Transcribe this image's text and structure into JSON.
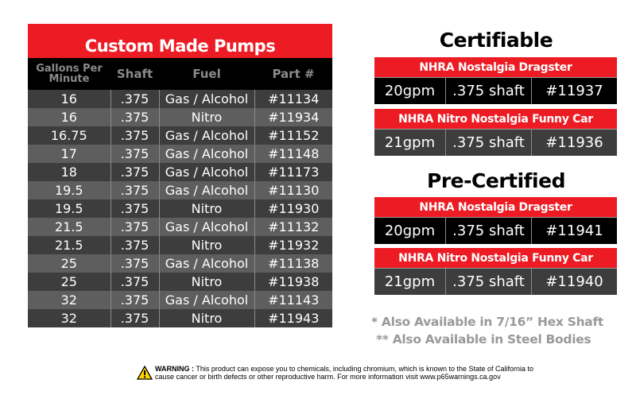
{
  "custom": {
    "title": "Custom Made Pumps",
    "headers": [
      "Gallons Per Minute",
      "Shaft",
      "Fuel",
      "Part #"
    ],
    "rows": [
      [
        "16",
        ".375",
        "Gas / Alcohol",
        "#11134"
      ],
      [
        "16",
        ".375",
        "Nitro",
        "#11934"
      ],
      [
        "16.75",
        ".375",
        "Gas / Alcohol",
        "#11152"
      ],
      [
        "17",
        ".375",
        "Gas / Alcohol",
        "#11148"
      ],
      [
        "18",
        ".375",
        "Gas / Alcohol",
        "#11173"
      ],
      [
        "19.5",
        ".375",
        "Gas / Alcohol",
        "#11130"
      ],
      [
        "19.5",
        ".375",
        "Nitro",
        "#11930"
      ],
      [
        "21.5",
        ".375",
        "Gas / Alcohol",
        "#11132"
      ],
      [
        "21.5",
        ".375",
        "Nitro",
        "#11932"
      ],
      [
        "25",
        ".375",
        "Gas / Alcohol",
        "#11138"
      ],
      [
        "25",
        ".375",
        "Nitro",
        "#11938"
      ],
      [
        "32",
        ".375",
        "Gas / Alcohol",
        "#11143"
      ],
      [
        "32",
        ".375",
        "Nitro",
        "#11943"
      ]
    ]
  },
  "certifiable": {
    "title": "Certifiable",
    "blocks": [
      {
        "name": "NHRA Nostalgia Dragster",
        "cells": [
          "20gpm",
          ".375 shaft",
          "#11937"
        ]
      },
      {
        "name": "NHRA Nitro Nostalgia Funny Car",
        "cells": [
          "21gpm",
          ".375 shaft",
          "#11936"
        ]
      }
    ]
  },
  "precertified": {
    "title": "Pre-Certified",
    "blocks": [
      {
        "name": "NHRA Nostalgia Dragster",
        "cells": [
          "20gpm",
          ".375 shaft",
          "#11941"
        ]
      },
      {
        "name": "NHRA Nitro Nostalgia Funny Car",
        "cells": [
          "21gpm",
          ".375 shaft",
          "#11940"
        ]
      }
    ]
  },
  "notes": [
    "* Also Available in 7/16” Hex Shaft",
    "** Also Available in Steel Bodies"
  ],
  "warning": {
    "label": "WARNING :",
    "line1": " This product can expose you to chemicals, including chromium, which is known to the State of California to",
    "line2": "cause cancer or birth defects or other reproductive harm. For more information visit www.p65warnings.ca.gov",
    "icon": "warning-triangle-icon"
  },
  "colors": {
    "red": "#ed1c24",
    "dark_row": "#3d3d3d",
    "light_row": "#5e5e5e",
    "black": "#000000",
    "note_gray": "#999999"
  }
}
